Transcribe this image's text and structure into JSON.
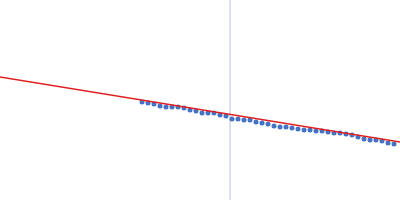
{
  "chart_data": {
    "type": "scatter",
    "xlim": [
      0,
      400
    ],
    "ylim": [
      0,
      200
    ],
    "grid": false,
    "tick_labels": false,
    "series": [
      {
        "type": "line",
        "color": "#c6cfe6",
        "line_style": "solid",
        "x": [
          230,
          230
        ],
        "values": [
          0,
          200
        ]
      },
      {
        "type": "scatter",
        "color": "#4472c4",
        "marker": "circle",
        "x": [
          142,
          148,
          154,
          160,
          166,
          172,
          178,
          184,
          190,
          196,
          202,
          208,
          214,
          220,
          226,
          232,
          238,
          244,
          250,
          256,
          262,
          268,
          274,
          280,
          286,
          292,
          298,
          304,
          310,
          316,
          322,
          328,
          334,
          340,
          346,
          352,
          358,
          364,
          370,
          376,
          382,
          388,
          394
        ],
        "values": [
          98,
          97,
          96,
          94,
          93,
          93,
          93,
          92,
          90,
          89,
          87,
          87,
          87,
          85,
          84,
          81,
          81,
          80,
          80,
          78,
          77,
          76,
          74,
          73,
          73,
          72,
          71,
          70,
          70,
          69,
          69,
          68,
          67,
          67,
          66,
          65,
          63,
          61,
          60,
          60,
          59,
          57,
          56
        ]
      },
      {
        "type": "line",
        "color": "#e02020",
        "line_style": "solid",
        "x": [
          0,
          400
        ],
        "values": [
          123,
          58
        ]
      }
    ]
  }
}
